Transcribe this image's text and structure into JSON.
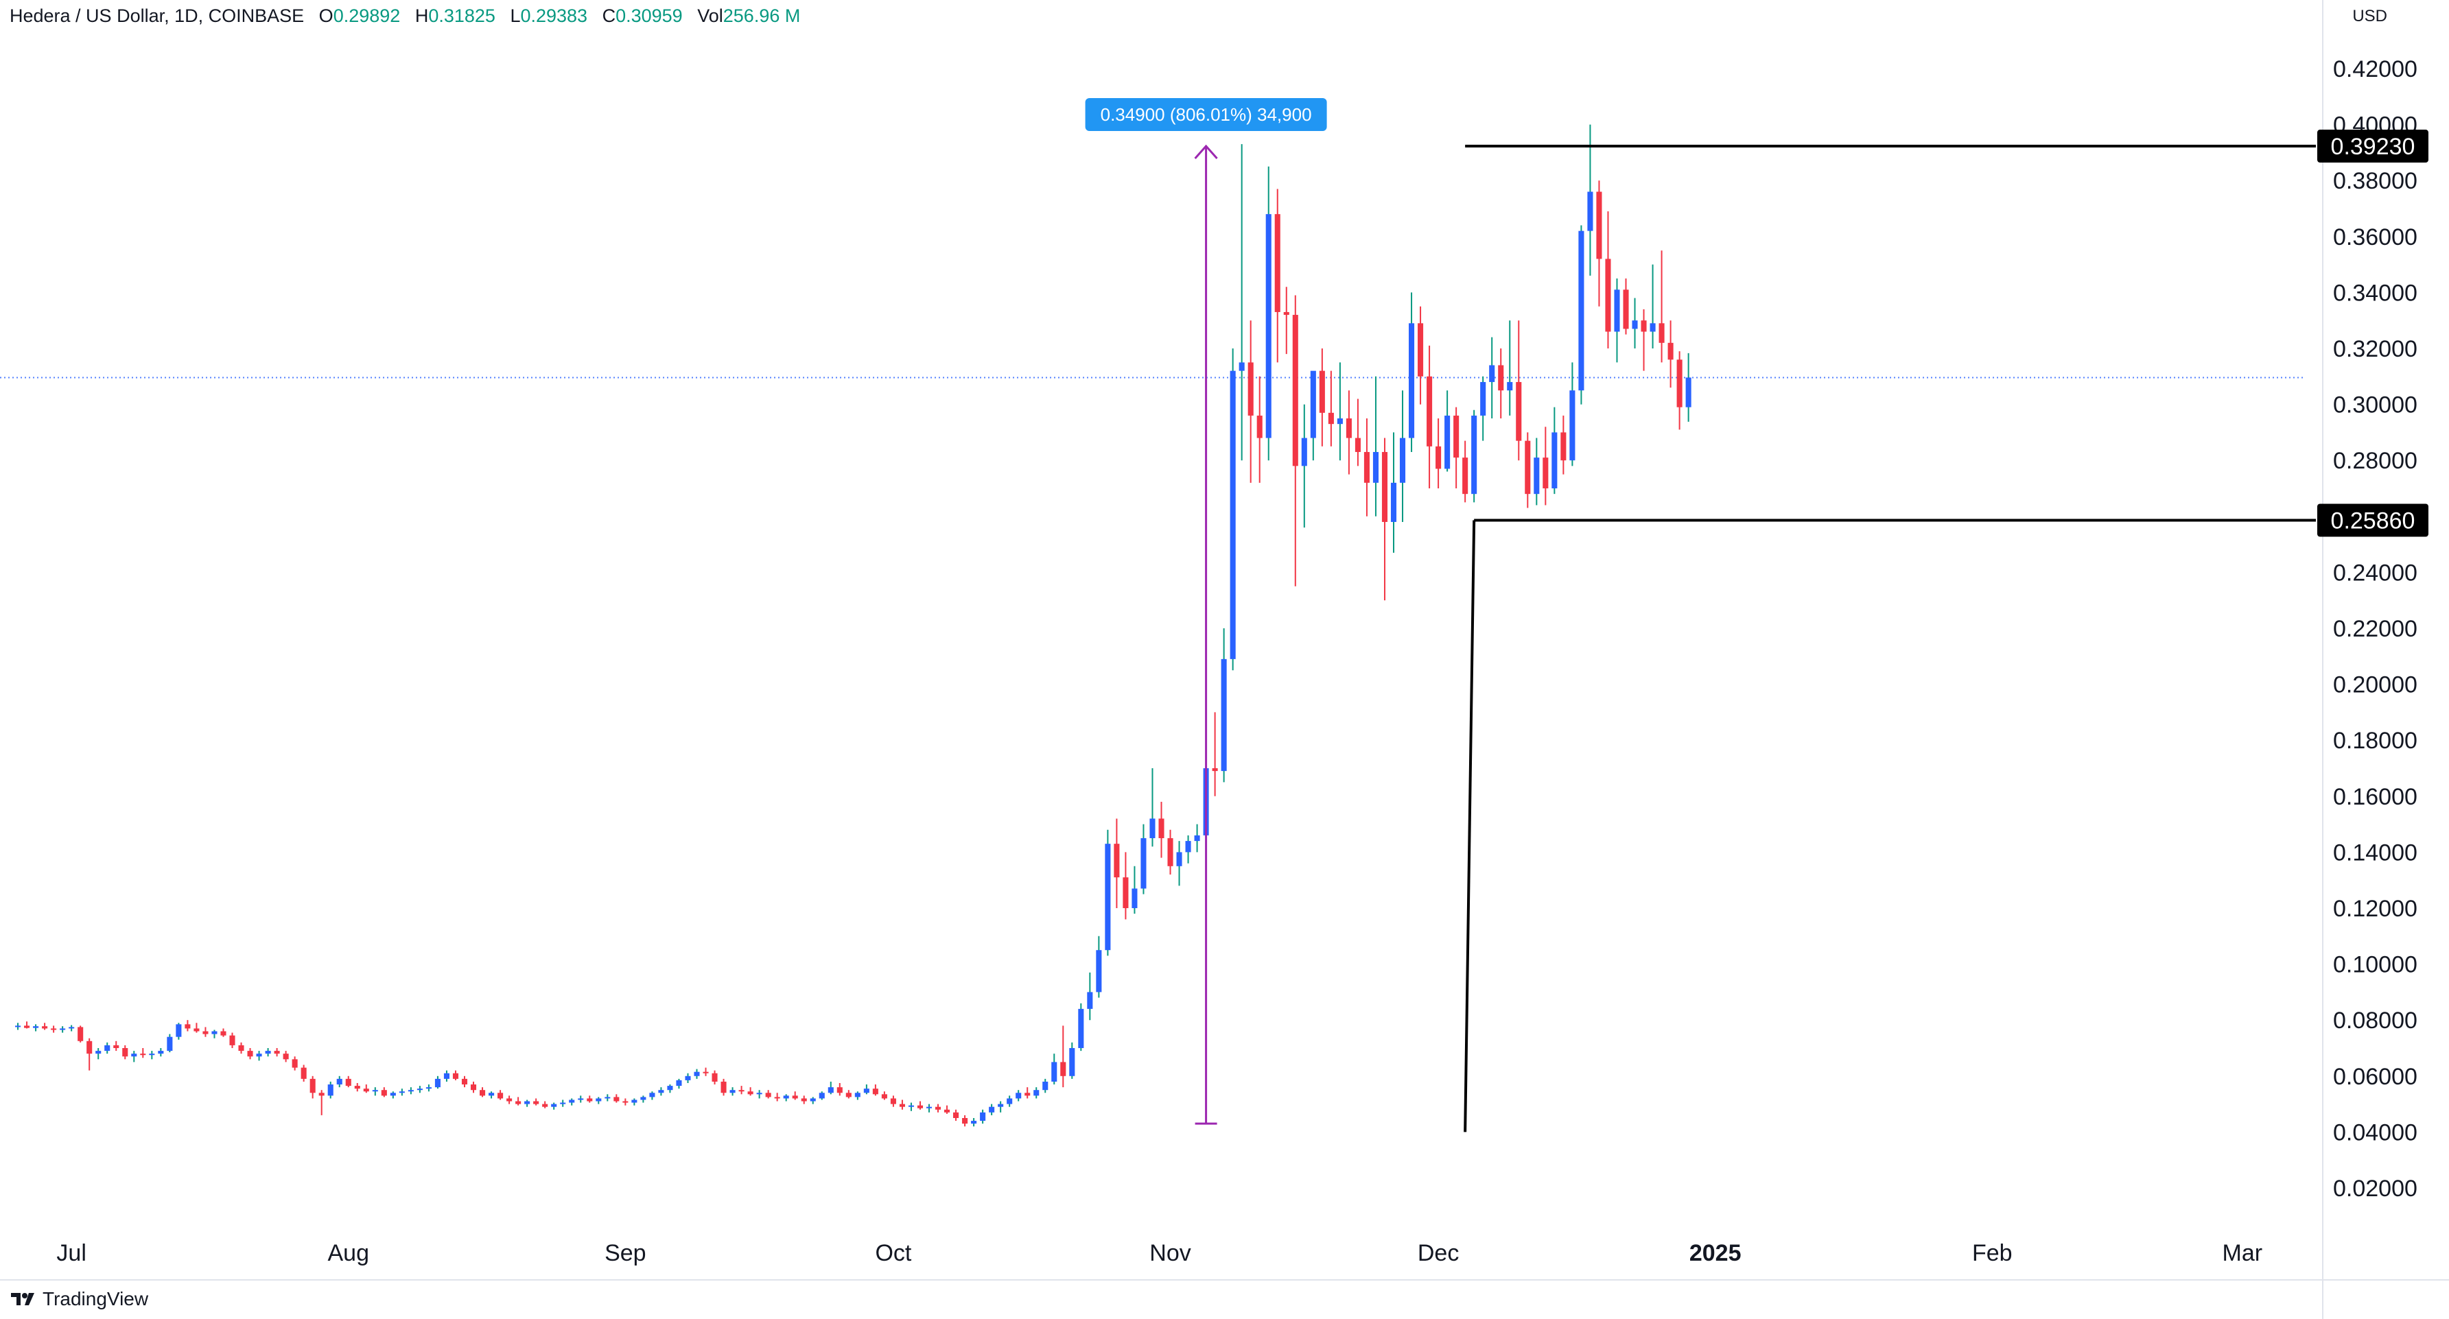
{
  "header": {
    "symbol": "Hedera / US Dollar, 1D, COINBASE",
    "o_label": "O",
    "o_value": "0.29892",
    "h_label": "H",
    "h_value": "0.31825",
    "l_label": "L",
    "l_value": "0.29383",
    "c_label": "C",
    "c_value": "0.30959",
    "vol_label": "Vol",
    "vol_value": "256.96 M"
  },
  "currency": "USD",
  "brand": {
    "icon": "tradingview-logo-icon",
    "name": "TradingView"
  },
  "colors": {
    "up": "#2962ff",
    "down": "#f23645",
    "up_wick": "#089981",
    "down_wick": "#f23645",
    "measure": "#9c27b0",
    "measure_label_bg": "#2196f3",
    "line": "#000000",
    "current_price_line": "#2962ff"
  },
  "measure_label": "0.34900 (806.01%) 34,900",
  "chart_data": {
    "type": "candlestick",
    "title": "Hedera / US Dollar, 1D, COINBASE",
    "ylim": [
      0.005,
      0.431
    ],
    "y_ticks": [
      "0.42000",
      "0.40000",
      "0.38000",
      "0.36000",
      "0.34000",
      "0.32000",
      "0.30000",
      "0.28000",
      "0.26000",
      "0.24000",
      "0.22000",
      "0.20000",
      "0.18000",
      "0.16000",
      "0.14000",
      "0.12000",
      "0.10000",
      "0.08000",
      "0.06000",
      "0.04000",
      "0.02000"
    ],
    "x_start": "2024-06-23",
    "x_end": "2025-03-10",
    "x_ticks": [
      {
        "date": "2024-07-01",
        "label": "Jul",
        "bold": false
      },
      {
        "date": "2024-08-01",
        "label": "Aug",
        "bold": false
      },
      {
        "date": "2024-09-01",
        "label": "Sep",
        "bold": false
      },
      {
        "date": "2024-10-01",
        "label": "Oct",
        "bold": false
      },
      {
        "date": "2024-11-01",
        "label": "Nov",
        "bold": false
      },
      {
        "date": "2024-12-01",
        "label": "Dec",
        "bold": false
      },
      {
        "date": "2025-01-01",
        "label": "2025",
        "bold": true
      },
      {
        "date": "2025-02-01",
        "label": "Feb",
        "bold": false
      },
      {
        "date": "2025-03-01",
        "label": "Mar",
        "bold": false
      }
    ],
    "candles_first_date": "2024-06-25",
    "candles": [
      [
        0.0775,
        0.079,
        0.0765,
        0.078
      ],
      [
        0.078,
        0.0795,
        0.077,
        0.0772
      ],
      [
        0.0772,
        0.0785,
        0.076,
        0.0778
      ],
      [
        0.0778,
        0.079,
        0.0765,
        0.077
      ],
      [
        0.077,
        0.078,
        0.0755,
        0.0765
      ],
      [
        0.0765,
        0.0778,
        0.0755,
        0.077
      ],
      [
        0.077,
        0.0782,
        0.076,
        0.0775
      ],
      [
        0.0775,
        0.078,
        0.072,
        0.0725
      ],
      [
        0.0725,
        0.0735,
        0.062,
        0.068
      ],
      [
        0.068,
        0.07,
        0.066,
        0.069
      ],
      [
        0.069,
        0.072,
        0.068,
        0.071
      ],
      [
        0.071,
        0.0725,
        0.069,
        0.07
      ],
      [
        0.07,
        0.071,
        0.066,
        0.067
      ],
      [
        0.067,
        0.069,
        0.065,
        0.068
      ],
      [
        0.068,
        0.07,
        0.0665,
        0.0675
      ],
      [
        0.0675,
        0.069,
        0.066,
        0.068
      ],
      [
        0.068,
        0.07,
        0.067,
        0.069
      ],
      [
        0.069,
        0.075,
        0.0685,
        0.074
      ],
      [
        0.074,
        0.079,
        0.073,
        0.0785
      ],
      [
        0.0785,
        0.08,
        0.076,
        0.077
      ],
      [
        0.077,
        0.079,
        0.0755,
        0.076
      ],
      [
        0.076,
        0.0775,
        0.074,
        0.075
      ],
      [
        0.075,
        0.0765,
        0.0735,
        0.076
      ],
      [
        0.076,
        0.077,
        0.074,
        0.0745
      ],
      [
        0.0745,
        0.0755,
        0.07,
        0.071
      ],
      [
        0.071,
        0.072,
        0.068,
        0.069
      ],
      [
        0.069,
        0.07,
        0.066,
        0.067
      ],
      [
        0.067,
        0.069,
        0.0655,
        0.068
      ],
      [
        0.068,
        0.07,
        0.067,
        0.069
      ],
      [
        0.069,
        0.07,
        0.067,
        0.068
      ],
      [
        0.068,
        0.069,
        0.065,
        0.066
      ],
      [
        0.066,
        0.067,
        0.062,
        0.063
      ],
      [
        0.063,
        0.064,
        0.058,
        0.059
      ],
      [
        0.059,
        0.06,
        0.052,
        0.054
      ],
      [
        0.054,
        0.055,
        0.046,
        0.053
      ],
      [
        0.053,
        0.058,
        0.052,
        0.057
      ],
      [
        0.057,
        0.06,
        0.056,
        0.059
      ],
      [
        0.059,
        0.06,
        0.056,
        0.0565
      ],
      [
        0.0565,
        0.0575,
        0.0545,
        0.0555
      ],
      [
        0.0555,
        0.057,
        0.054,
        0.0545
      ],
      [
        0.0545,
        0.056,
        0.053,
        0.055
      ],
      [
        0.055,
        0.056,
        0.0525,
        0.053
      ],
      [
        0.053,
        0.0545,
        0.052,
        0.054
      ],
      [
        0.054,
        0.0555,
        0.053,
        0.0545
      ],
      [
        0.0545,
        0.056,
        0.0535,
        0.055
      ],
      [
        0.055,
        0.0565,
        0.054,
        0.0555
      ],
      [
        0.0555,
        0.057,
        0.0545,
        0.056
      ],
      [
        0.056,
        0.06,
        0.0555,
        0.059
      ],
      [
        0.059,
        0.062,
        0.058,
        0.061
      ],
      [
        0.061,
        0.062,
        0.0585,
        0.059
      ],
      [
        0.059,
        0.06,
        0.056,
        0.057
      ],
      [
        0.057,
        0.058,
        0.054,
        0.055
      ],
      [
        0.055,
        0.056,
        0.0525,
        0.053
      ],
      [
        0.053,
        0.0545,
        0.052,
        0.054
      ],
      [
        0.054,
        0.055,
        0.0515,
        0.052
      ],
      [
        0.052,
        0.053,
        0.05,
        0.051
      ],
      [
        0.051,
        0.0525,
        0.0495,
        0.05
      ],
      [
        0.05,
        0.0515,
        0.049,
        0.051
      ],
      [
        0.051,
        0.052,
        0.0495,
        0.05
      ],
      [
        0.05,
        0.051,
        0.0485,
        0.049
      ],
      [
        0.049,
        0.0505,
        0.048,
        0.05
      ],
      [
        0.05,
        0.0515,
        0.049,
        0.0505
      ],
      [
        0.0505,
        0.052,
        0.0495,
        0.0515
      ],
      [
        0.0515,
        0.053,
        0.0505,
        0.052
      ],
      [
        0.052,
        0.053,
        0.0505,
        0.051
      ],
      [
        0.051,
        0.0525,
        0.05,
        0.052
      ],
      [
        0.052,
        0.0535,
        0.051,
        0.0525
      ],
      [
        0.0525,
        0.0535,
        0.0505,
        0.051
      ],
      [
        0.051,
        0.052,
        0.0495,
        0.0505
      ],
      [
        0.0505,
        0.052,
        0.0495,
        0.0515
      ],
      [
        0.0515,
        0.053,
        0.0505,
        0.0525
      ],
      [
        0.0525,
        0.0545,
        0.0515,
        0.054
      ],
      [
        0.054,
        0.056,
        0.053,
        0.055
      ],
      [
        0.055,
        0.057,
        0.054,
        0.0565
      ],
      [
        0.0565,
        0.059,
        0.0555,
        0.0585
      ],
      [
        0.0585,
        0.061,
        0.0575,
        0.06
      ],
      [
        0.06,
        0.0625,
        0.059,
        0.0615
      ],
      [
        0.0615,
        0.063,
        0.06,
        0.061
      ],
      [
        0.061,
        0.062,
        0.057,
        0.058
      ],
      [
        0.058,
        0.059,
        0.053,
        0.054
      ],
      [
        0.054,
        0.056,
        0.053,
        0.055
      ],
      [
        0.055,
        0.0565,
        0.0535,
        0.0545
      ],
      [
        0.0545,
        0.056,
        0.053,
        0.0535
      ],
      [
        0.0535,
        0.055,
        0.052,
        0.054
      ],
      [
        0.054,
        0.055,
        0.052,
        0.0525
      ],
      [
        0.0525,
        0.054,
        0.051,
        0.052
      ],
      [
        0.052,
        0.0535,
        0.051,
        0.053
      ],
      [
        0.053,
        0.0545,
        0.0515,
        0.052
      ],
      [
        0.052,
        0.053,
        0.05,
        0.051
      ],
      [
        0.051,
        0.0525,
        0.05,
        0.052
      ],
      [
        0.052,
        0.0545,
        0.0515,
        0.054
      ],
      [
        0.054,
        0.058,
        0.0535,
        0.056
      ],
      [
        0.056,
        0.0575,
        0.053,
        0.054
      ],
      [
        0.054,
        0.055,
        0.052,
        0.0525
      ],
      [
        0.0525,
        0.0545,
        0.0515,
        0.054
      ],
      [
        0.054,
        0.057,
        0.0535,
        0.0555
      ],
      [
        0.0555,
        0.057,
        0.053,
        0.0535
      ],
      [
        0.0535,
        0.0545,
        0.0515,
        0.052
      ],
      [
        0.052,
        0.053,
        0.049,
        0.05
      ],
      [
        0.05,
        0.0515,
        0.048,
        0.049
      ],
      [
        0.049,
        0.0505,
        0.0475,
        0.0495
      ],
      [
        0.0495,
        0.051,
        0.048,
        0.0485
      ],
      [
        0.0485,
        0.05,
        0.047,
        0.049
      ],
      [
        0.049,
        0.05,
        0.047,
        0.048
      ],
      [
        0.048,
        0.0495,
        0.0465,
        0.047
      ],
      [
        0.047,
        0.048,
        0.044,
        0.045
      ],
      [
        0.045,
        0.046,
        0.042,
        0.043
      ],
      [
        0.043,
        0.045,
        0.042,
        0.044
      ],
      [
        0.044,
        0.048,
        0.043,
        0.047
      ],
      [
        0.047,
        0.05,
        0.046,
        0.049
      ],
      [
        0.049,
        0.051,
        0.047,
        0.05
      ],
      [
        0.05,
        0.053,
        0.049,
        0.052
      ],
      [
        0.052,
        0.055,
        0.051,
        0.054
      ],
      [
        0.054,
        0.056,
        0.052,
        0.053
      ],
      [
        0.053,
        0.056,
        0.052,
        0.055
      ],
      [
        0.055,
        0.059,
        0.054,
        0.058
      ],
      [
        0.058,
        0.068,
        0.057,
        0.065
      ],
      [
        0.065,
        0.078,
        0.056,
        0.06
      ],
      [
        0.06,
        0.072,
        0.059,
        0.07
      ],
      [
        0.07,
        0.086,
        0.069,
        0.084
      ],
      [
        0.084,
        0.097,
        0.08,
        0.09
      ],
      [
        0.09,
        0.11,
        0.088,
        0.105
      ],
      [
        0.105,
        0.148,
        0.103,
        0.143
      ],
      [
        0.143,
        0.152,
        0.12,
        0.131
      ],
      [
        0.131,
        0.14,
        0.116,
        0.12
      ],
      [
        0.12,
        0.135,
        0.118,
        0.127
      ],
      [
        0.127,
        0.15,
        0.125,
        0.145
      ],
      [
        0.145,
        0.17,
        0.142,
        0.152
      ],
      [
        0.152,
        0.158,
        0.138,
        0.145
      ],
      [
        0.145,
        0.148,
        0.132,
        0.135
      ],
      [
        0.135,
        0.144,
        0.128,
        0.14
      ],
      [
        0.14,
        0.146,
        0.136,
        0.144
      ],
      [
        0.144,
        0.15,
        0.14,
        0.146
      ],
      [
        0.146,
        0.176,
        0.144,
        0.17
      ],
      [
        0.17,
        0.19,
        0.16,
        0.169
      ],
      [
        0.169,
        0.22,
        0.165,
        0.209
      ],
      [
        0.209,
        0.32,
        0.205,
        0.312
      ],
      [
        0.312,
        0.393,
        0.28,
        0.315
      ],
      [
        0.315,
        0.33,
        0.272,
        0.296
      ],
      [
        0.296,
        0.31,
        0.272,
        0.288
      ],
      [
        0.288,
        0.385,
        0.28,
        0.368
      ],
      [
        0.368,
        0.377,
        0.315,
        0.333
      ],
      [
        0.333,
        0.342,
        0.318,
        0.332
      ],
      [
        0.332,
        0.339,
        0.235,
        0.278
      ],
      [
        0.278,
        0.3,
        0.256,
        0.288
      ],
      [
        0.288,
        0.31,
        0.28,
        0.312
      ],
      [
        0.312,
        0.32,
        0.285,
        0.297
      ],
      [
        0.297,
        0.312,
        0.285,
        0.293
      ],
      [
        0.293,
        0.315,
        0.28,
        0.295
      ],
      [
        0.295,
        0.305,
        0.275,
        0.288
      ],
      [
        0.288,
        0.302,
        0.278,
        0.283
      ],
      [
        0.283,
        0.295,
        0.26,
        0.272
      ],
      [
        0.272,
        0.31,
        0.26,
        0.283
      ],
      [
        0.283,
        0.288,
        0.23,
        0.258
      ],
      [
        0.258,
        0.29,
        0.247,
        0.272
      ],
      [
        0.272,
        0.305,
        0.258,
        0.288
      ],
      [
        0.288,
        0.34,
        0.283,
        0.329
      ],
      [
        0.329,
        0.335,
        0.3,
        0.31
      ],
      [
        0.31,
        0.321,
        0.27,
        0.285
      ],
      [
        0.285,
        0.295,
        0.27,
        0.277
      ],
      [
        0.277,
        0.305,
        0.276,
        0.296
      ],
      [
        0.296,
        0.299,
        0.27,
        0.281
      ],
      [
        0.281,
        0.287,
        0.265,
        0.268
      ],
      [
        0.268,
        0.298,
        0.265,
        0.296
      ],
      [
        0.296,
        0.31,
        0.287,
        0.308
      ],
      [
        0.308,
        0.324,
        0.295,
        0.314
      ],
      [
        0.314,
        0.32,
        0.295,
        0.305
      ],
      [
        0.305,
        0.33,
        0.296,
        0.308
      ],
      [
        0.308,
        0.33,
        0.28,
        0.287
      ],
      [
        0.287,
        0.29,
        0.263,
        0.268
      ],
      [
        0.268,
        0.288,
        0.264,
        0.281
      ],
      [
        0.281,
        0.292,
        0.264,
        0.27
      ],
      [
        0.27,
        0.299,
        0.268,
        0.29
      ],
      [
        0.29,
        0.296,
        0.275,
        0.28
      ],
      [
        0.28,
        0.315,
        0.278,
        0.305
      ],
      [
        0.305,
        0.364,
        0.3,
        0.362
      ],
      [
        0.362,
        0.4,
        0.346,
        0.376
      ],
      [
        0.376,
        0.38,
        0.335,
        0.352
      ],
      [
        0.352,
        0.369,
        0.32,
        0.326
      ],
      [
        0.326,
        0.345,
        0.315,
        0.341
      ],
      [
        0.341,
        0.345,
        0.325,
        0.327
      ],
      [
        0.327,
        0.338,
        0.32,
        0.33
      ],
      [
        0.33,
        0.334,
        0.312,
        0.326
      ],
      [
        0.326,
        0.35,
        0.32,
        0.329
      ],
      [
        0.329,
        0.355,
        0.315,
        0.322
      ],
      [
        0.322,
        0.33,
        0.306,
        0.316
      ],
      [
        0.316,
        0.319,
        0.291,
        0.299
      ],
      [
        0.299,
        0.3183,
        0.2938,
        0.3096
      ]
    ],
    "annotations": {
      "horizontal_lines": [
        {
          "price": 0.3923,
          "label": "0.39230",
          "from_date": "2024-12-04"
        },
        {
          "price": 0.2586,
          "label": "0.25860",
          "from_date": "2024-12-05"
        }
      ],
      "trend_line": [
        {
          "date": "2024-12-04",
          "price": 0.04
        },
        {
          "date": "2024-12-05",
          "price": 0.2586
        }
      ],
      "current_price": 0.30959,
      "measure": {
        "date": "2024-11-05",
        "from_price": 0.043,
        "to_price": 0.3923,
        "label": "0.34900 (806.01%) 34,900"
      }
    },
    "legend": "none",
    "grid": false
  }
}
